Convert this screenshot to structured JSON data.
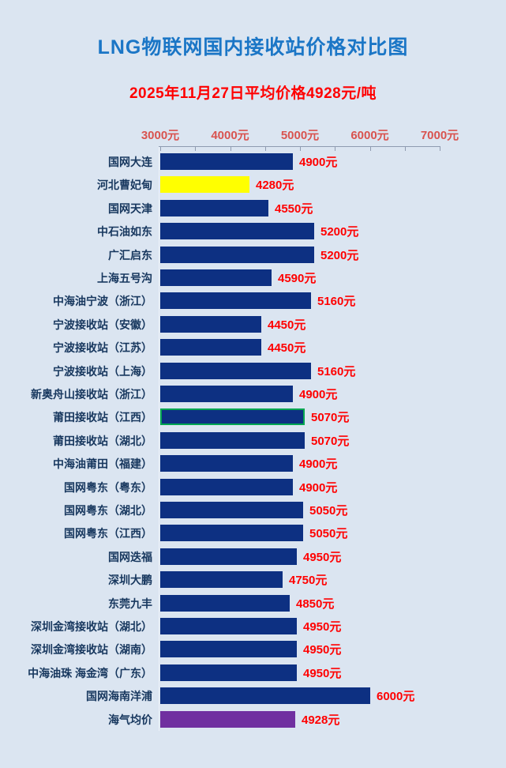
{
  "title": "LNG物联网国内接收站价格对比图",
  "subtitle": "2025年11月27日平均价格4928元/吨",
  "colors": {
    "background": "#dbe5f1",
    "title": "#1b76c6",
    "subtitle": "#ff0000",
    "axis_label": "#d9534f",
    "axis_line": "#8f9bb0",
    "row_label": "#17375e",
    "value_label": "#ff0000",
    "navy": "#0d3082",
    "yellow": "#ffff00",
    "purple": "#7030a0",
    "green": "#00a651"
  },
  "chart_data": {
    "type": "bar",
    "orientation": "horizontal",
    "title": "LNG物联网国内接收站价格对比图",
    "subtitle": "2025年11月27日平均价格4928元/吨",
    "unit": "元/吨",
    "xlim": [
      3000,
      7000
    ],
    "x_ticks": [
      {
        "value": 3000,
        "label": "3000元"
      },
      {
        "value": 4000,
        "label": "4000元"
      },
      {
        "value": 5000,
        "label": "5000元"
      },
      {
        "value": 6000,
        "label": "6000元"
      },
      {
        "value": 7000,
        "label": "7000元"
      }
    ],
    "minor_tick_interval": 500,
    "grid": false,
    "legend": false,
    "bars": [
      {
        "label": "国网大连",
        "value": 4900,
        "display": "4900元",
        "fill": "navy",
        "border": null
      },
      {
        "label": "河北曹妃甸",
        "value": 4280,
        "display": "4280元",
        "fill": "yellow",
        "border": null
      },
      {
        "label": "国网天津",
        "value": 4550,
        "display": "4550元",
        "fill": "navy",
        "border": null
      },
      {
        "label": "中石油如东",
        "value": 5200,
        "display": "5200元",
        "fill": "navy",
        "border": null
      },
      {
        "label": "广汇启东",
        "value": 5200,
        "display": "5200元",
        "fill": "navy",
        "border": null
      },
      {
        "label": "上海五号沟",
        "value": 4590,
        "display": "4590元",
        "fill": "navy",
        "border": null
      },
      {
        "label": "中海油宁波（浙江）",
        "value": 5160,
        "display": "5160元",
        "fill": "navy",
        "border": null
      },
      {
        "label": "宁波接收站（安徽）",
        "value": 4450,
        "display": "4450元",
        "fill": "navy",
        "border": null
      },
      {
        "label": "宁波接收站（江苏）",
        "value": 4450,
        "display": "4450元",
        "fill": "navy",
        "border": null
      },
      {
        "label": "宁波接收站（上海）",
        "value": 5160,
        "display": "5160元",
        "fill": "navy",
        "border": null
      },
      {
        "label": "新奥舟山接收站（浙江）",
        "value": 4900,
        "display": "4900元",
        "fill": "navy",
        "border": null
      },
      {
        "label": "莆田接收站（江西）",
        "value": 5070,
        "display": "5070元",
        "fill": "navy",
        "border": "green"
      },
      {
        "label": "莆田接收站（湖北）",
        "value": 5070,
        "display": "5070元",
        "fill": "navy",
        "border": null
      },
      {
        "label": "中海油莆田（福建）",
        "value": 4900,
        "display": "4900元",
        "fill": "navy",
        "border": null
      },
      {
        "label": "国网粤东（粤东）",
        "value": 4900,
        "display": "4900元",
        "fill": "navy",
        "border": null
      },
      {
        "label": "国网粤东（湖北）",
        "value": 5050,
        "display": "5050元",
        "fill": "navy",
        "border": null
      },
      {
        "label": "国网粤东（江西）",
        "value": 5050,
        "display": "5050元",
        "fill": "navy",
        "border": null
      },
      {
        "label": "国网迭福",
        "value": 4950,
        "display": "4950元",
        "fill": "navy",
        "border": null
      },
      {
        "label": "深圳大鹏",
        "value": 4750,
        "display": "4750元",
        "fill": "navy",
        "border": null
      },
      {
        "label": "东莞九丰",
        "value": 4850,
        "display": "4850元",
        "fill": "navy",
        "border": null
      },
      {
        "label": "深圳金湾接收站（湖北）",
        "value": 4950,
        "display": "4950元",
        "fill": "navy",
        "border": null
      },
      {
        "label": "深圳金湾接收站（湖南）",
        "value": 4950,
        "display": "4950元",
        "fill": "navy",
        "border": null
      },
      {
        "label": "中海油珠 海金湾（广东）",
        "value": 4950,
        "display": "4950元",
        "fill": "navy",
        "border": null
      },
      {
        "label": "国网海南洋浦",
        "value": 6000,
        "display": "6000元",
        "fill": "navy",
        "border": null
      },
      {
        "label": "海气均价",
        "value": 4928,
        "display": "4928元",
        "fill": "purple",
        "border": null
      }
    ]
  }
}
